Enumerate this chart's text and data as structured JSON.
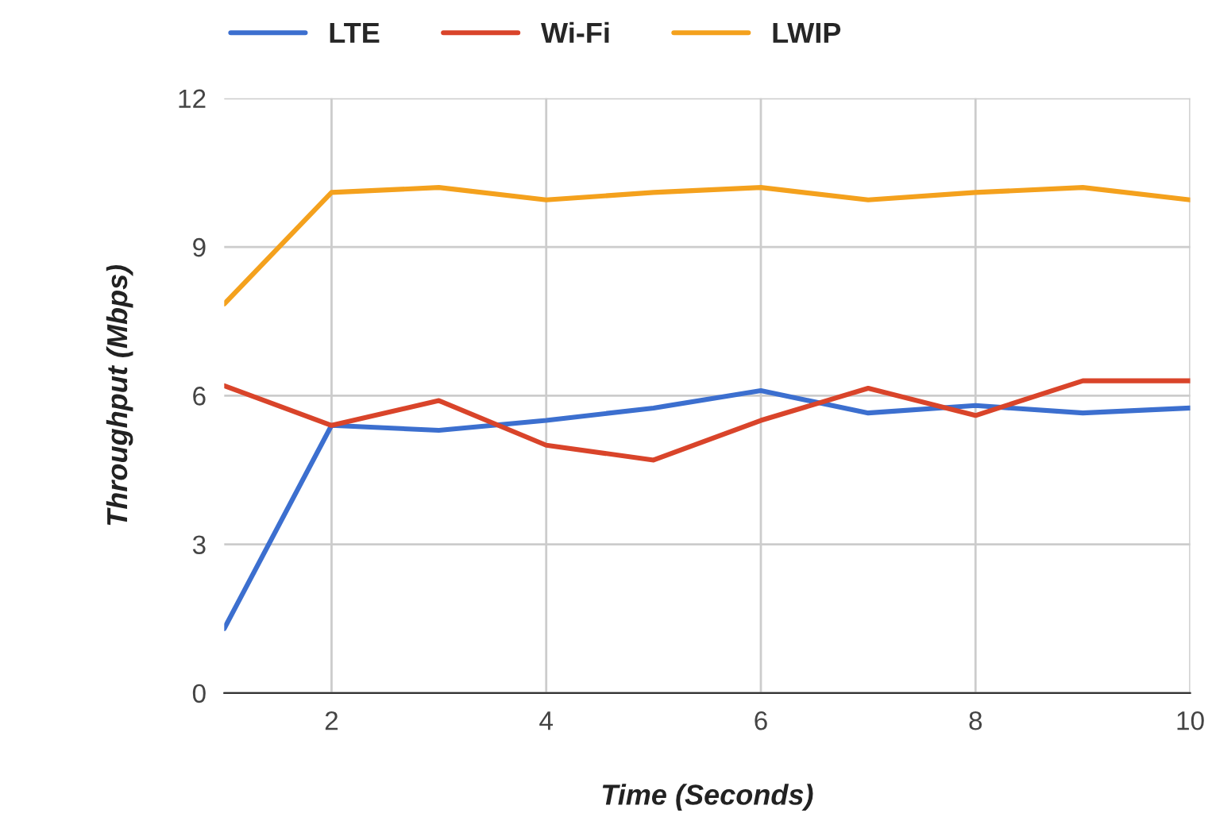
{
  "chart_data": {
    "type": "line",
    "xlabel": "Time (Seconds)",
    "ylabel": "Throughput (Mbps)",
    "x": [
      1,
      2,
      3,
      4,
      5,
      6,
      7,
      8,
      9,
      10
    ],
    "series": [
      {
        "name": "LTE",
        "color": "#3c6fcf",
        "values": [
          1.3,
          5.4,
          5.3,
          5.5,
          5.75,
          6.1,
          5.65,
          5.8,
          5.65,
          5.75
        ]
      },
      {
        "name": "Wi-Fi",
        "color": "#d9442a",
        "values": [
          6.2,
          5.4,
          5.9,
          5.0,
          4.7,
          5.5,
          6.15,
          5.6,
          6.3,
          6.3
        ]
      },
      {
        "name": "LWIP",
        "color": "#f4a11d",
        "values": [
          7.85,
          10.1,
          10.2,
          9.95,
          10.1,
          10.2,
          9.95,
          10.1,
          10.2,
          9.95
        ]
      }
    ],
    "xlim": [
      1,
      10
    ],
    "xticks": [
      2,
      4,
      6,
      8,
      10
    ],
    "ylim": [
      0,
      12
    ],
    "yticks": [
      0,
      3,
      6,
      9,
      12
    ],
    "grid": true,
    "legend": "top",
    "marker": "none",
    "line_style": "solid"
  }
}
